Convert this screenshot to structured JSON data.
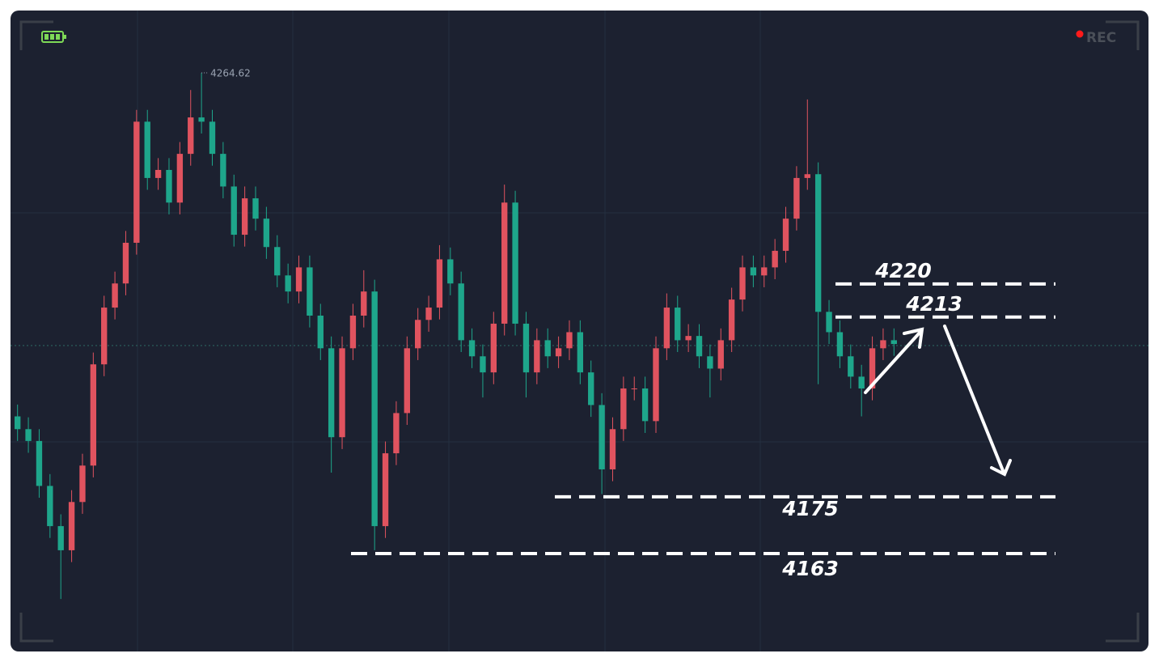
{
  "chart_data": {
    "type": "candlestick",
    "open": [
      4192.0,
      4189.3,
      4186.8,
      4177.3,
      4168.8,
      4163.7,
      4173.9,
      4181.6,
      4203.0,
      4215.0,
      4220.1,
      4228.7,
      4254.3,
      4242.4,
      4244.1,
      4237.2,
      4247.5,
      4255.2,
      4254.3,
      4247.5,
      4240.6,
      4230.4,
      4238.1,
      4233.8,
      4227.8,
      4221.8,
      4218.4,
      4223.5,
      4213.3,
      4206.4,
      4187.6,
      4206.4,
      4213.3,
      4218.4,
      4168.8,
      4184.2,
      4192.7,
      4206.4,
      4212.4,
      4215.0,
      4225.2,
      4220.1,
      4208.1,
      4204.7,
      4201.3,
      4211.6,
      4237.2,
      4211.6,
      4201.3,
      4208.1,
      4204.7,
      4206.4,
      4209.8,
      4201.3,
      4194.4,
      4180.8,
      4189.3,
      4197.9,
      4197.9,
      4191.0,
      4206.4,
      4215.0,
      4208.1,
      4209.0,
      4204.7,
      4202.1,
      4208.1,
      4216.7,
      4223.5,
      4221.8,
      4223.5,
      4227.0,
      4233.8,
      4242.4,
      4243.2,
      4214.1,
      4209.8,
      4204.7,
      4200.4,
      4197.9,
      4206.4,
      4208.1
    ],
    "high": [
      4194.5,
      4191.8,
      4189.3,
      4179.8,
      4171.3,
      4176.4,
      4184.1,
      4205.5,
      4217.5,
      4222.6,
      4231.2,
      4256.8,
      4256.8,
      4246.6,
      4246.6,
      4250.0,
      4261.0,
      4264.62,
      4256.8,
      4250.0,
      4243.1,
      4240.6,
      4240.6,
      4236.3,
      4230.3,
      4224.3,
      4226.0,
      4226.0,
      4215.8,
      4208.9,
      4208.9,
      4215.8,
      4222.9,
      4220.9,
      4186.7,
      4195.2,
      4208.9,
      4214.9,
      4217.5,
      4228.2,
      4227.7,
      4222.6,
      4210.6,
      4207.2,
      4214.1,
      4241.0,
      4239.7,
      4214.1,
      4210.6,
      4210.6,
      4208.9,
      4212.3,
      4212.3,
      4203.8,
      4196.9,
      4191.8,
      4200.4,
      4200.4,
      4200.4,
      4208.9,
      4218.0,
      4217.5,
      4211.5,
      4211.5,
      4207.2,
      4210.6,
      4219.2,
      4226.0,
      4226.0,
      4226.0,
      4229.5,
      4236.3,
      4244.9,
      4259.0,
      4245.7,
      4216.6,
      4212.3,
      4207.2,
      4202.9,
      4208.9,
      4210.6,
      4210.6
    ],
    "low": [
      4186.8,
      4184.3,
      4174.8,
      4166.3,
      4153.4,
      4161.2,
      4171.4,
      4179.1,
      4200.5,
      4212.5,
      4217.6,
      4226.2,
      4239.9,
      4239.9,
      4234.7,
      4234.7,
      4245.0,
      4251.8,
      4245.0,
      4238.1,
      4227.9,
      4227.9,
      4231.3,
      4225.3,
      4219.3,
      4215.9,
      4215.9,
      4210.8,
      4203.9,
      4180.1,
      4185.1,
      4203.9,
      4210.8,
      4163.7,
      4166.3,
      4181.7,
      4190.2,
      4203.9,
      4209.9,
      4212.5,
      4217.6,
      4205.6,
      4202.2,
      4196.0,
      4198.8,
      4209.1,
      4209.1,
      4196.0,
      4198.8,
      4202.2,
      4202.2,
      4203.9,
      4198.8,
      4191.9,
      4175.6,
      4178.3,
      4186.8,
      4195.4,
      4188.5,
      4188.5,
      4203.9,
      4205.6,
      4205.6,
      4202.2,
      4196.0,
      4199.6,
      4205.6,
      4214.2,
      4219.3,
      4219.3,
      4221.0,
      4224.5,
      4231.3,
      4239.9,
      4198.8,
      4207.3,
      4202.2,
      4197.9,
      4192.0,
      4195.4,
      4203.9,
      4204.8
    ],
    "close": [
      4189.3,
      4186.8,
      4177.3,
      4168.8,
      4163.7,
      4173.9,
      4181.6,
      4203.0,
      4215.0,
      4220.1,
      4228.7,
      4254.3,
      4242.4,
      4244.1,
      4237.2,
      4247.5,
      4255.2,
      4254.3,
      4247.5,
      4240.6,
      4230.4,
      4238.1,
      4233.8,
      4227.8,
      4221.8,
      4218.4,
      4223.5,
      4213.3,
      4206.4,
      4187.6,
      4206.4,
      4213.3,
      4218.4,
      4168.8,
      4184.2,
      4192.7,
      4206.4,
      4212.4,
      4215.0,
      4225.2,
      4220.1,
      4208.1,
      4204.7,
      4201.3,
      4211.6,
      4237.2,
      4211.6,
      4201.3,
      4208.1,
      4204.7,
      4206.4,
      4209.8,
      4201.3,
      4194.4,
      4180.8,
      4189.3,
      4197.9,
      4197.9,
      4191.0,
      4206.4,
      4215.0,
      4208.1,
      4209.0,
      4204.7,
      4202.1,
      4208.1,
      4216.7,
      4223.5,
      4221.8,
      4223.5,
      4227.0,
      4233.8,
      4242.4,
      4243.2,
      4214.1,
      4209.8,
      4204.7,
      4200.4,
      4197.9,
      4206.4,
      4208.1,
      4207.3
    ],
    "up_color": "#e0535f",
    "down_color": "#1ea68b",
    "ylim": [
      4142.3,
      4277.8
    ],
    "levels": [
      4220,
      4213,
      4175,
      4163
    ],
    "level_color": "#ffffff"
  },
  "recording": {
    "label": "REC"
  }
}
